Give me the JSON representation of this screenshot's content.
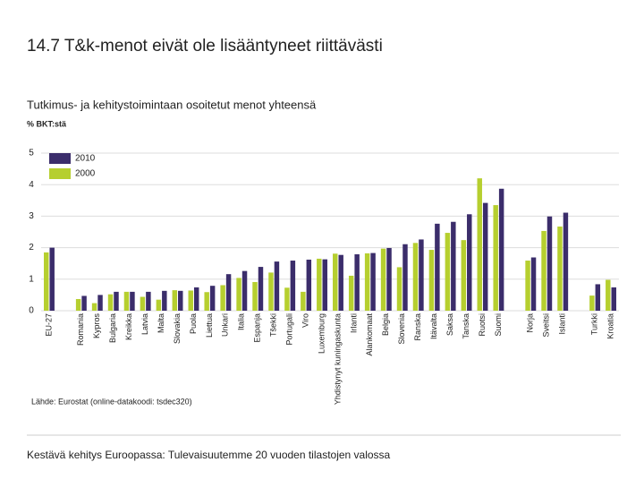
{
  "chart_data": {
    "type": "bar",
    "title": "14.7 T&k-menot eivät ole lisääntyneet riittävästi",
    "subtitle": "Tutkimus- ja kehitystoimintaan osoitetut menot yhteensä",
    "y_label": "% BKT:stä",
    "source": "Lähde: Eurostat (online-datakoodi: tsdec320)",
    "footer": "Kestävä kehitys Euroopassa: Tulevaisuutemme 20 vuoden tilastojen valossa",
    "categories": [
      "EU-27",
      null,
      "Romania",
      "Kypros",
      "Bulgaria",
      "Kreikka",
      "Latvia",
      "Malta",
      "Slovakia",
      "Puola",
      "Liettua",
      "Unkari",
      "Italia",
      "Espanja",
      "Tšekki",
      "Portugali",
      "Viro",
      "Luxemburg",
      "Yhdistynyt kuningaskunta",
      "Irlanti",
      "Alankomaat",
      "Belgia",
      "Slovenia",
      "Ranska",
      "Itävalta",
      "Saksa",
      "Tanska",
      "Ruotsi",
      "Suomi",
      null,
      "Norja",
      "Sveitsi",
      "Islanti",
      null,
      "Turkki",
      "Kroatia"
    ],
    "series": [
      {
        "name": "2000",
        "color": "#b6cf2f",
        "values": [
          1.85,
          null,
          0.37,
          0.24,
          0.52,
          0.6,
          0.44,
          0.35,
          0.65,
          0.64,
          0.59,
          0.81,
          1.04,
          0.91,
          1.21,
          0.73,
          0.6,
          1.65,
          1.81,
          1.11,
          1.82,
          1.97,
          1.38,
          2.15,
          1.93,
          2.47,
          2.24,
          4.2,
          3.35,
          null,
          1.59,
          2.53,
          2.67,
          null,
          0.48,
          0.98
        ]
      },
      {
        "name": "2010",
        "color": "#3b2d6b",
        "values": [
          2.0,
          null,
          0.47,
          0.5,
          0.6,
          0.6,
          0.6,
          0.63,
          0.63,
          0.74,
          0.79,
          1.16,
          1.26,
          1.39,
          1.56,
          1.59,
          1.62,
          1.63,
          1.77,
          1.79,
          1.83,
          1.99,
          2.11,
          2.26,
          2.76,
          2.82,
          3.06,
          3.42,
          3.87,
          null,
          1.69,
          2.99,
          3.11,
          null,
          0.84,
          0.74
        ]
      }
    ],
    "ylim": [
      0,
      5
    ],
    "yticks": [
      0,
      1,
      2,
      3,
      4,
      5
    ],
    "grid": true
  }
}
